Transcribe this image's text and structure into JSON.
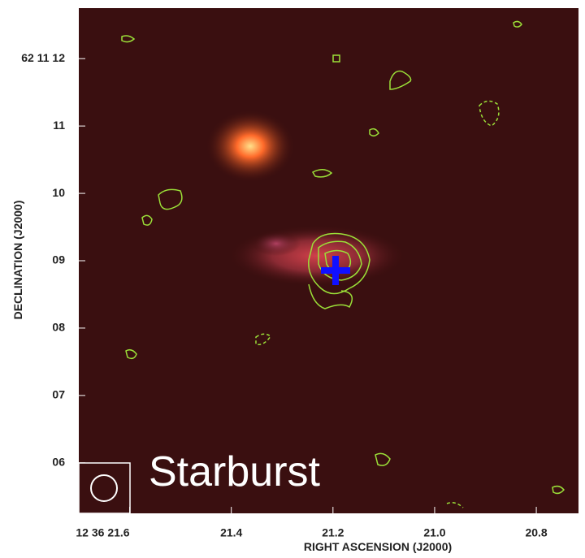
{
  "chart_data": {
    "type": "image",
    "text_label": "Starburst",
    "xlabel": "RIGHT ASCENSION (J2000)",
    "ylabel": "DECLINATION (J2000)",
    "xlim": [
      21.7,
      20.717
    ],
    "xticks": [
      {
        "value": 21.6,
        "label": "12 36 21.6"
      },
      {
        "value": 21.4,
        "label": "21.4"
      },
      {
        "value": 21.2,
        "label": "21.2"
      },
      {
        "value": 21.0,
        "label": "21.0"
      },
      {
        "value": 20.8,
        "label": "20.8"
      }
    ],
    "ylim": [
      5.25,
      12.75
    ],
    "yticks": [
      {
        "value": 12,
        "label": "62 11 12"
      },
      11,
      10,
      {
        "value": 9,
        "label": "09"
      },
      {
        "value": 8,
        "label": "08"
      },
      {
        "value": 7,
        "label": "07"
      },
      {
        "value": 6,
        "label": "06"
      }
    ]
  }
}
